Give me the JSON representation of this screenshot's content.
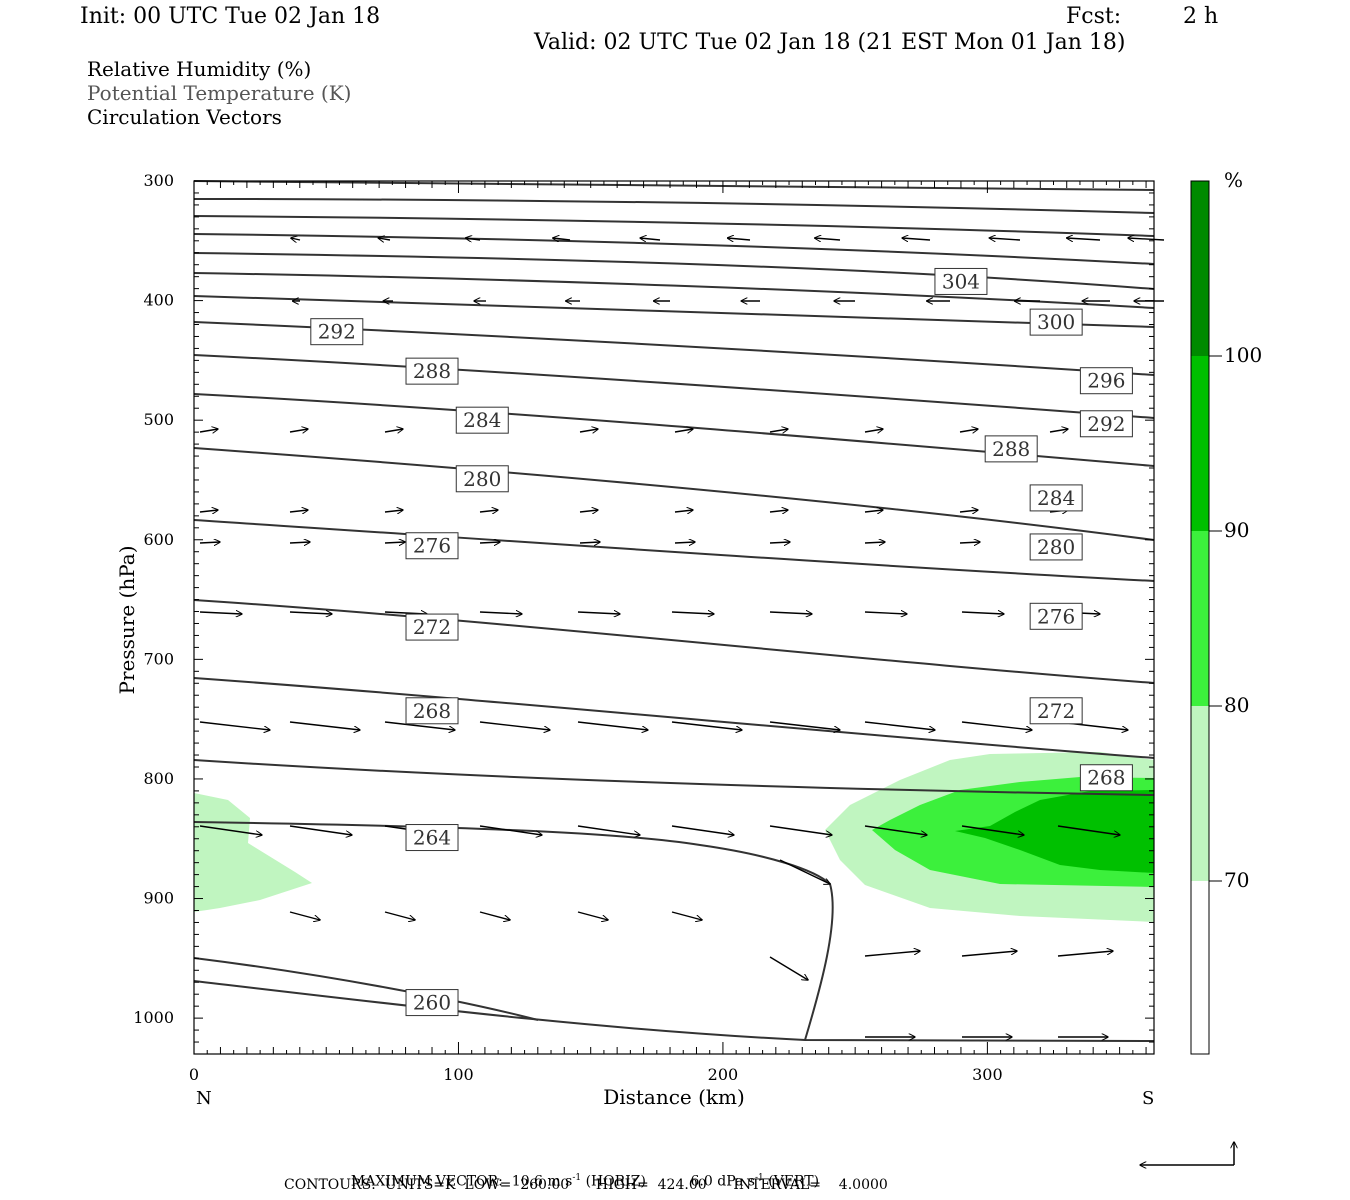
{
  "header": {
    "init": "Init: 00 UTC Tue 02 Jan 18",
    "fcst_label": "Fcst:",
    "fcst_value": "2 h",
    "valid": "Valid: 02 UTC Tue 02 Jan 18 (21 EST Mon 01 Jan 18)"
  },
  "fields": {
    "rh": "Relative Humidity (%)",
    "theta": "Potential Temperature (K)",
    "vectors": "Circulation Vectors"
  },
  "footer": {
    "maxvec_prefix": "MAXIMUM VECTOR:",
    "maxvec_h_num": "10.6 m s",
    "maxvec_h_sup": "-1",
    "maxvec_h_tail": "(HORIZ)",
    "maxvec_v_num": "6.0 dPa s",
    "maxvec_v_sup": "-1",
    "maxvec_v_tail": "(VERT)",
    "contours": "CONTOURS:  UNITS=K  LOW=  260.00      HIGH=  424.00      INTERVAL=    4.0000"
  },
  "colors": {
    "rh70": "#c0f5c0",
    "rh80": "#3cf03c",
    "rh90": "#00c000",
    "rh100": "#008a00",
    "contour": "#333333"
  },
  "chart_data": {
    "type": "cross-section",
    "xlabel": "Distance (km)",
    "ylabel": "Pressure (hPa)",
    "xlim": [
      0,
      363
    ],
    "ylim": [
      1030,
      300
    ],
    "x_ticks": [
      "0",
      "100",
      "200",
      "300"
    ],
    "y_ticks": [
      "300",
      "400",
      "500",
      "600",
      "700",
      "800",
      "900",
      "1000"
    ],
    "x_end_labels": {
      "left": "N",
      "right": "S"
    },
    "colorbar": {
      "unit": "%",
      "levels": [
        "70",
        "80",
        "90",
        "100"
      ]
    },
    "contour_levels": [
      260,
      264,
      268,
      272,
      276,
      280,
      284,
      288,
      292,
      296,
      300,
      304
    ],
    "contour_labels": [
      {
        "text": "304",
        "x": 290,
        "p": 384
      },
      {
        "text": "300",
        "x": 326,
        "p": 418
      },
      {
        "text": "296",
        "x": 345,
        "p": 467
      },
      {
        "text": "292",
        "x": 54,
        "p": 426
      },
      {
        "text": "292",
        "x": 345,
        "p": 503
      },
      {
        "text": "288",
        "x": 90,
        "p": 459
      },
      {
        "text": "288",
        "x": 309,
        "p": 524
      },
      {
        "text": "284",
        "x": 109,
        "p": 500
      },
      {
        "text": "284",
        "x": 326,
        "p": 565
      },
      {
        "text": "280",
        "x": 109,
        "p": 549
      },
      {
        "text": "280",
        "x": 326,
        "p": 606
      },
      {
        "text": "276",
        "x": 90,
        "p": 605
      },
      {
        "text": "276",
        "x": 326,
        "p": 664
      },
      {
        "text": "272",
        "x": 90,
        "p": 673
      },
      {
        "text": "272",
        "x": 326,
        "p": 743
      },
      {
        "text": "268",
        "x": 90,
        "p": 743
      },
      {
        "text": "268",
        "x": 345,
        "p": 799
      },
      {
        "text": "264",
        "x": 90,
        "p": 849
      },
      {
        "text": "260",
        "x": 90,
        "p": 987
      }
    ]
  }
}
